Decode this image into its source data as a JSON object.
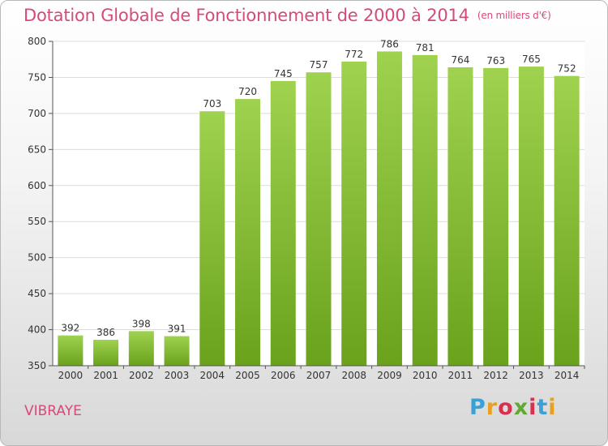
{
  "title": "Dotation Globale de Fonctionnement de 2000 à 2014",
  "unit_label": "(en milliers d'€)",
  "commune": "VIBRAYE",
  "logo": {
    "text": "Proxiti",
    "colors": [
      "#3aa0d8",
      "#e8a020",
      "#d83050",
      "#60a830",
      "#d83050",
      "#3aa0d8",
      "#e8a020"
    ]
  },
  "colors": {
    "bar_top": "#9fd24f",
    "bar_bottom": "#6aa21c",
    "title": "#d64a7a",
    "grid": "#dcdcdc"
  },
  "chart_data": {
    "type": "bar",
    "categories": [
      "2000",
      "2001",
      "2002",
      "2003",
      "2004",
      "2005",
      "2006",
      "2007",
      "2008",
      "2009",
      "2010",
      "2011",
      "2012",
      "2013",
      "2014"
    ],
    "values": [
      392,
      386,
      398,
      391,
      703,
      720,
      745,
      757,
      772,
      786,
      781,
      764,
      763,
      765,
      752
    ],
    "yticks": [
      350,
      400,
      450,
      500,
      550,
      600,
      650,
      700,
      750,
      800
    ],
    "ylim": [
      350,
      800
    ],
    "grid": true,
    "data_labels": true
  }
}
